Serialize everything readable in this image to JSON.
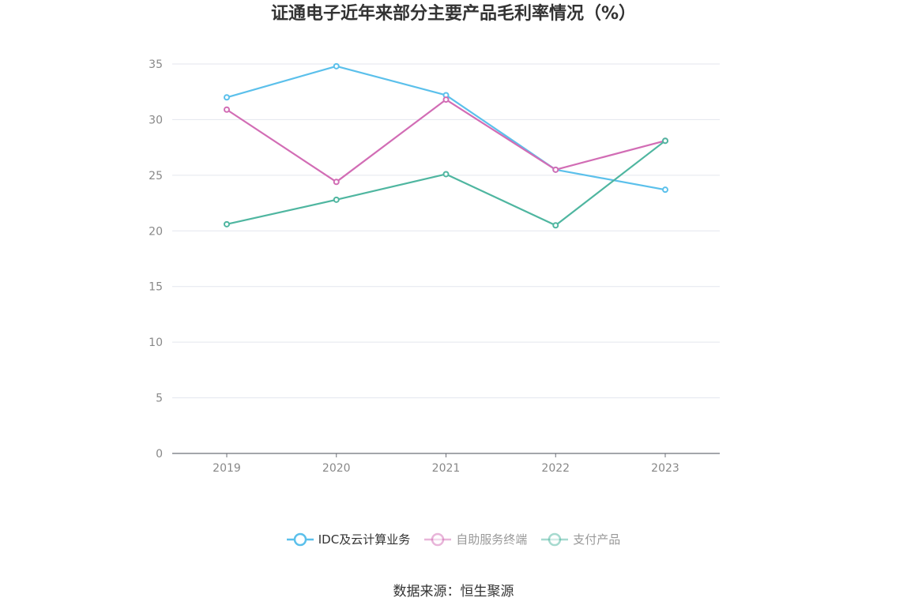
{
  "chart_data": {
    "type": "line",
    "title": "证通电子近年来部分主要产品毛利率情况（%）",
    "categories": [
      "2019",
      "2020",
      "2021",
      "2022",
      "2023"
    ],
    "series": [
      {
        "name": "IDC及云计算业务",
        "color": "#5bc0eb",
        "values": [
          32.0,
          34.8,
          32.2,
          25.5,
          23.7
        ]
      },
      {
        "name": "自助服务终端",
        "color": "#d26db5",
        "values": [
          30.9,
          24.4,
          31.8,
          25.5,
          28.1
        ]
      },
      {
        "name": "支付产品",
        "color": "#4fb6a0",
        "values": [
          20.6,
          22.8,
          25.1,
          20.5,
          28.1
        ]
      }
    ],
    "ylim": [
      0,
      35
    ],
    "yticks": [
      0,
      5,
      10,
      15,
      20,
      25,
      30,
      35
    ],
    "grid": true,
    "legend_position": "bottom"
  },
  "source": "数据来源：恒生聚源"
}
